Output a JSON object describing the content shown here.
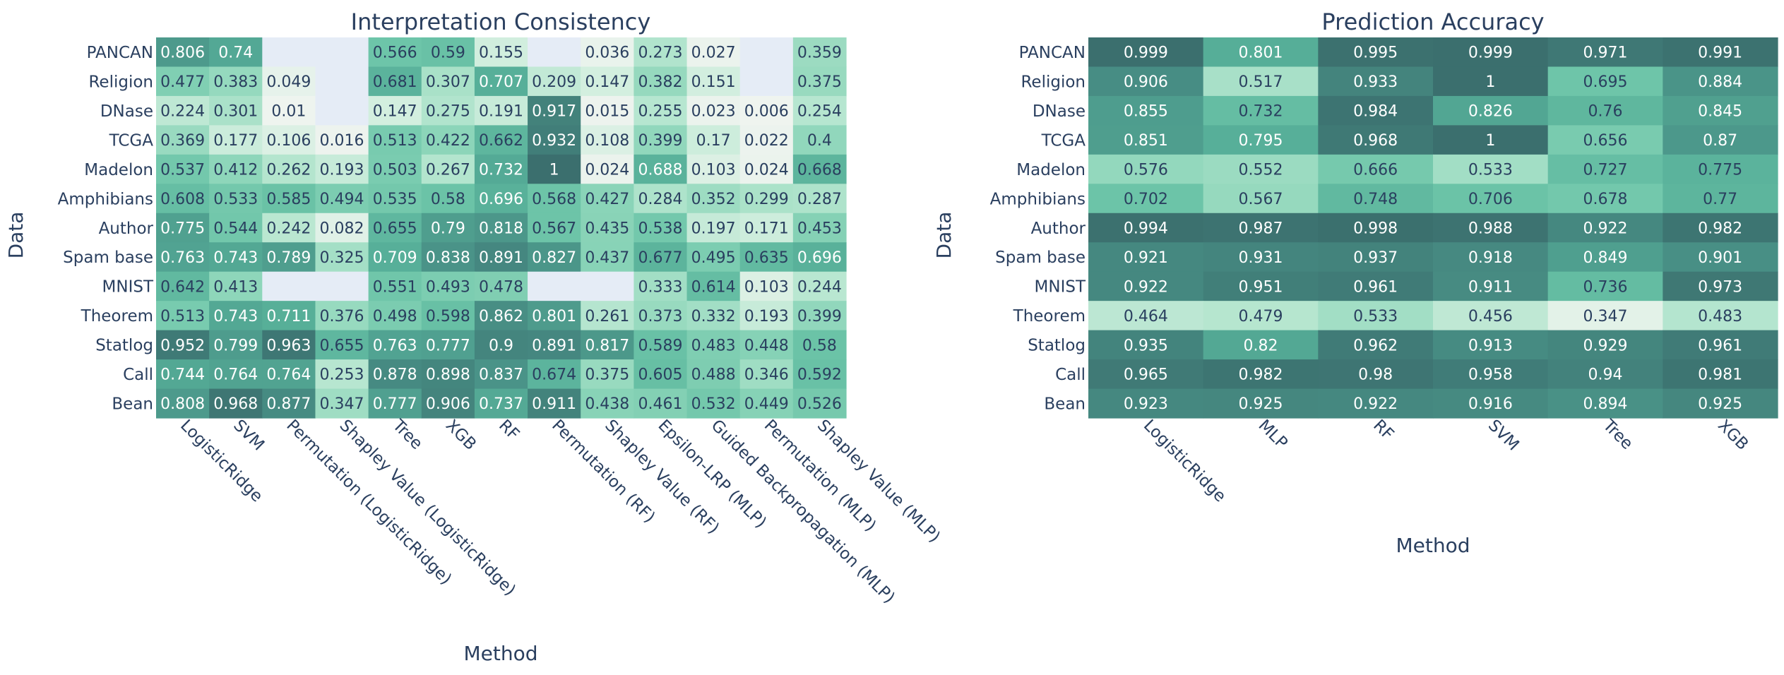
{
  "chart_data": [
    {
      "type": "heatmap",
      "title": "Interpretation Consistency",
      "xlabel": "Method",
      "ylabel": "Data",
      "x": [
        "LogisticRidge",
        "SVM",
        "Permutation (LogisticRidge)",
        "Shapley Value (LogisticRidge)",
        "Tree",
        "XGB",
        "RF",
        "Permutation (RF)",
        "Shapley Value (RF)",
        "Epsilon-LRP (MLP)",
        "Guided Backpropagation (MLP)",
        "Permutation (MLP)",
        "Shapley Value (MLP)"
      ],
      "y": [
        "PANCAN",
        "Religion",
        "DNase",
        "TCGA",
        "Madelon",
        "Amphibians",
        "Author",
        "Spam base",
        "MNIST",
        "Theorem",
        "Statlog",
        "Call",
        "Bean"
      ],
      "z": [
        [
          0.806,
          0.74,
          null,
          null,
          0.566,
          0.59,
          0.155,
          null,
          0.036,
          0.273,
          0.027,
          null,
          0.359
        ],
        [
          0.477,
          0.383,
          0.049,
          null,
          0.681,
          0.307,
          0.707,
          0.209,
          0.147,
          0.382,
          0.151,
          null,
          0.375
        ],
        [
          0.224,
          0.301,
          0.01,
          null,
          0.147,
          0.275,
          0.191,
          0.917,
          0.015,
          0.255,
          0.023,
          0.006,
          0.254
        ],
        [
          0.369,
          0.177,
          0.106,
          0.016,
          0.513,
          0.422,
          0.662,
          0.932,
          0.108,
          0.399,
          0.17,
          0.022,
          0.4
        ],
        [
          0.537,
          0.412,
          0.262,
          0.193,
          0.503,
          0.267,
          0.732,
          1,
          0.024,
          0.688,
          0.103,
          0.024,
          0.668
        ],
        [
          0.608,
          0.533,
          0.585,
          0.494,
          0.535,
          0.58,
          0.696,
          0.568,
          0.427,
          0.284,
          0.352,
          0.299,
          0.287
        ],
        [
          0.775,
          0.544,
          0.242,
          0.082,
          0.655,
          0.79,
          0.818,
          0.567,
          0.435,
          0.538,
          0.197,
          0.171,
          0.453
        ],
        [
          0.763,
          0.743,
          0.789,
          0.325,
          0.709,
          0.838,
          0.891,
          0.827,
          0.437,
          0.677,
          0.495,
          0.635,
          0.696
        ],
        [
          0.642,
          0.413,
          null,
          null,
          0.551,
          0.493,
          0.478,
          null,
          null,
          0.333,
          0.614,
          0.103,
          0.244
        ],
        [
          0.513,
          0.743,
          0.711,
          0.376,
          0.498,
          0.598,
          0.862,
          0.801,
          0.261,
          0.373,
          0.332,
          0.193,
          0.399
        ],
        [
          0.952,
          0.799,
          0.963,
          0.655,
          0.763,
          0.777,
          0.9,
          0.891,
          0.817,
          0.589,
          0.483,
          0.448,
          0.58
        ],
        [
          0.744,
          0.764,
          0.764,
          0.253,
          0.878,
          0.898,
          0.837,
          0.674,
          0.375,
          0.605,
          0.488,
          0.346,
          0.592
        ],
        [
          0.808,
          0.968,
          0.877,
          0.347,
          0.777,
          0.906,
          0.737,
          0.911,
          0.438,
          0.461,
          0.532,
          0.449,
          0.526
        ]
      ],
      "zlim": [
        0,
        1
      ],
      "missing_color": "#e5ecf6"
    },
    {
      "type": "heatmap",
      "title": "Prediction Accuracy",
      "xlabel": "Method",
      "ylabel": "Data",
      "x": [
        "LogisticRidge",
        "MLP",
        "RF",
        "SVM",
        "Tree",
        "XGB"
      ],
      "y": [
        "PANCAN",
        "Religion",
        "DNase",
        "TCGA",
        "Madelon",
        "Amphibians",
        "Author",
        "Spam base",
        "MNIST",
        "Theorem",
        "Statlog",
        "Call",
        "Bean"
      ],
      "z": [
        [
          0.999,
          0.801,
          0.995,
          0.999,
          0.971,
          0.991
        ],
        [
          0.906,
          0.517,
          0.933,
          1,
          0.695,
          0.884
        ],
        [
          0.855,
          0.732,
          0.984,
          0.826,
          0.76,
          0.845
        ],
        [
          0.851,
          0.795,
          0.968,
          1,
          0.656,
          0.87
        ],
        [
          0.576,
          0.552,
          0.666,
          0.533,
          0.727,
          0.775
        ],
        [
          0.702,
          0.567,
          0.748,
          0.706,
          0.678,
          0.77
        ],
        [
          0.994,
          0.987,
          0.998,
          0.988,
          0.922,
          0.982
        ],
        [
          0.921,
          0.931,
          0.937,
          0.918,
          0.849,
          0.901
        ],
        [
          0.922,
          0.951,
          0.961,
          0.911,
          0.736,
          0.973
        ],
        [
          0.464,
          0.479,
          0.533,
          0.456,
          0.347,
          0.483
        ],
        [
          0.935,
          0.82,
          0.962,
          0.913,
          0.929,
          0.961
        ],
        [
          0.965,
          0.982,
          0.98,
          0.958,
          0.94,
          0.981
        ],
        [
          0.923,
          0.925,
          0.922,
          0.916,
          0.894,
          0.925
        ]
      ],
      "zlim": [
        0.3,
        1
      ]
    }
  ],
  "colors": {
    "colorscale": [
      "#f0f4f0",
      "#d4efe0",
      "#aee3cb",
      "#8ad4b8",
      "#6cc4a8",
      "#56ae98",
      "#488f85",
      "#3b6f6e"
    ],
    "text_dark": "#2a3f5f",
    "text_light": "#ffffff",
    "title": "#2a3f5f"
  }
}
